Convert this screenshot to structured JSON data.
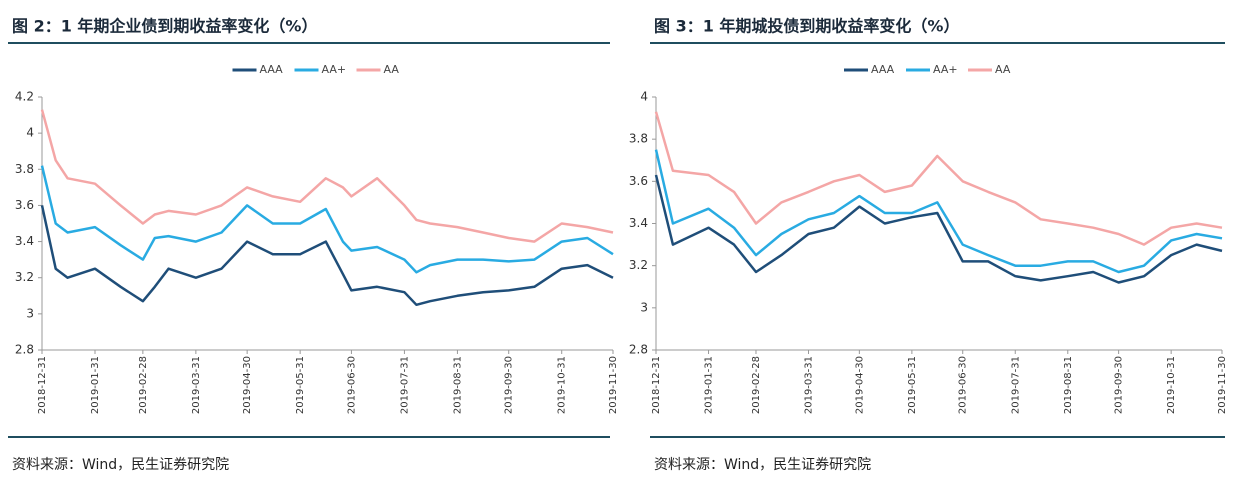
{
  "chart_data": [
    {
      "type": "line",
      "title": "图 2：1 年期企业债到期收益率变化（%）",
      "source": "资料来源：Wind，民生证券研究院",
      "x": [
        "2018-12-31",
        "2019-01-08",
        "2019-01-15",
        "2019-01-31",
        "2019-02-15",
        "2019-02-28",
        "2019-03-07",
        "2019-03-15",
        "2019-03-31",
        "2019-04-15",
        "2019-04-30",
        "2019-05-15",
        "2019-05-31",
        "2019-06-15",
        "2019-06-25",
        "2019-06-30",
        "2019-07-15",
        "2019-07-31",
        "2019-08-07",
        "2019-08-15",
        "2019-08-31",
        "2019-09-15",
        "2019-09-30",
        "2019-10-15",
        "2019-10-31",
        "2019-11-15",
        "2019-11-30"
      ],
      "series": [
        {
          "name": "AAA",
          "color": "#1f4e79",
          "values": [
            3.6,
            3.25,
            3.2,
            3.25,
            3.15,
            3.07,
            3.15,
            3.25,
            3.2,
            3.25,
            3.4,
            3.33,
            3.33,
            3.4,
            3.22,
            3.13,
            3.15,
            3.12,
            3.05,
            3.07,
            3.1,
            3.12,
            3.13,
            3.15,
            3.25,
            3.27,
            3.2
          ]
        },
        {
          "name": "AA+",
          "color": "#29abe2",
          "values": [
            3.82,
            3.5,
            3.45,
            3.48,
            3.38,
            3.3,
            3.42,
            3.43,
            3.4,
            3.45,
            3.6,
            3.5,
            3.5,
            3.58,
            3.4,
            3.35,
            3.37,
            3.3,
            3.23,
            3.27,
            3.3,
            3.3,
            3.29,
            3.3,
            3.4,
            3.42,
            3.33
          ]
        },
        {
          "name": "AA",
          "color": "#f4a6a6",
          "values": [
            4.13,
            3.85,
            3.75,
            3.72,
            3.6,
            3.5,
            3.55,
            3.57,
            3.55,
            3.6,
            3.7,
            3.65,
            3.62,
            3.75,
            3.7,
            3.65,
            3.75,
            3.6,
            3.52,
            3.5,
            3.48,
            3.45,
            3.42,
            3.4,
            3.5,
            3.48,
            3.45
          ]
        }
      ],
      "xlim": [
        "2018-12-31",
        "2019-11-30"
      ],
      "xticks": [
        "2018-12-31",
        "2019-01-31",
        "2019-02-28",
        "2019-03-31",
        "2019-04-30",
        "2019-05-31",
        "2019-06-30",
        "2019-07-31",
        "2019-08-31",
        "2019-09-30",
        "2019-10-31",
        "2019-11-30"
      ],
      "ylim": [
        2.8,
        4.2
      ],
      "yticks": [
        2.8,
        3,
        3.2,
        3.4,
        3.6,
        3.8,
        4,
        4.2
      ],
      "legend": "top",
      "grid": false
    },
    {
      "type": "line",
      "title": "图 3：1 年期城投债到期收益率变化（%）",
      "source": "资料来源：Wind，民生证券研究院",
      "x": [
        "2018-12-31",
        "2019-01-10",
        "2019-01-31",
        "2019-02-15",
        "2019-02-28",
        "2019-03-15",
        "2019-03-31",
        "2019-04-15",
        "2019-04-30",
        "2019-05-15",
        "2019-05-31",
        "2019-06-15",
        "2019-06-30",
        "2019-07-15",
        "2019-07-31",
        "2019-08-15",
        "2019-08-31",
        "2019-09-15",
        "2019-09-30",
        "2019-10-15",
        "2019-10-31",
        "2019-11-15",
        "2019-11-30"
      ],
      "series": [
        {
          "name": "AAA",
          "color": "#1f4e79",
          "values": [
            3.63,
            3.3,
            3.38,
            3.3,
            3.17,
            3.25,
            3.35,
            3.38,
            3.48,
            3.4,
            3.43,
            3.45,
            3.22,
            3.22,
            3.15,
            3.13,
            3.15,
            3.17,
            3.12,
            3.15,
            3.25,
            3.3,
            3.27
          ]
        },
        {
          "name": "AA+",
          "color": "#29abe2",
          "values": [
            3.75,
            3.4,
            3.47,
            3.38,
            3.25,
            3.35,
            3.42,
            3.45,
            3.53,
            3.45,
            3.45,
            3.5,
            3.3,
            3.25,
            3.2,
            3.2,
            3.22,
            3.22,
            3.17,
            3.2,
            3.32,
            3.35,
            3.33
          ]
        },
        {
          "name": "AA",
          "color": "#f4a6a6",
          "values": [
            3.93,
            3.65,
            3.63,
            3.55,
            3.4,
            3.5,
            3.55,
            3.6,
            3.63,
            3.55,
            3.58,
            3.72,
            3.6,
            3.55,
            3.5,
            3.42,
            3.4,
            3.38,
            3.35,
            3.3,
            3.38,
            3.4,
            3.38
          ]
        }
      ],
      "xlim": [
        "2018-12-31",
        "2019-11-30"
      ],
      "xticks": [
        "2018-12-31",
        "2019-01-31",
        "2019-02-28",
        "2019-03-31",
        "2019-04-30",
        "2019-05-31",
        "2019-06-30",
        "2019-07-31",
        "2019-08-31",
        "2019-09-30",
        "2019-10-31",
        "2019-11-30"
      ],
      "ylim": [
        2.8,
        4
      ],
      "yticks": [
        2.8,
        3,
        3.2,
        3.4,
        3.6,
        3.8,
        4
      ],
      "legend": "top",
      "grid": false
    }
  ]
}
